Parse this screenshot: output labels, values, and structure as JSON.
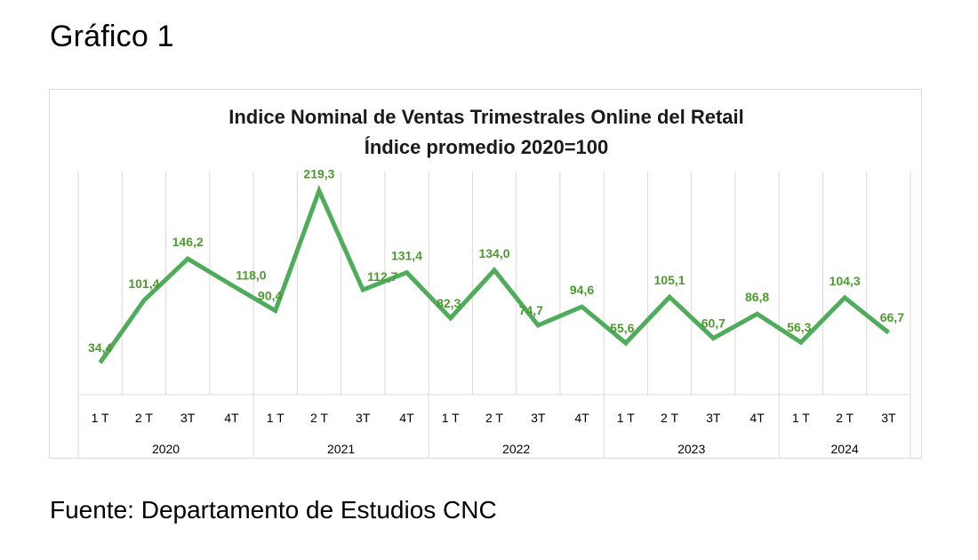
{
  "header": {
    "title": "Gráfico 1"
  },
  "footer": {
    "source": "Fuente: Departamento de Estudios CNC"
  },
  "chart_data": {
    "type": "line",
    "title": "Indice Nominal de Ventas Trimestrales Online del Retail",
    "subtitle": "Índice promedio 2020=100",
    "xlabel": "",
    "ylabel": "",
    "categories": [
      "1 T",
      "2 T",
      "3T",
      "4T",
      "1 T",
      "2 T",
      "3T",
      "4T",
      "1 T",
      "2 T",
      "3T",
      "4T",
      "1 T",
      "2 T",
      "3T",
      "4T",
      "1 T",
      "2 T",
      "3T"
    ],
    "years": [
      {
        "label": "2020",
        "count": 4
      },
      {
        "label": "2021",
        "count": 4
      },
      {
        "label": "2022",
        "count": 4
      },
      {
        "label": "2023",
        "count": 4
      },
      {
        "label": "2024",
        "count": 3
      }
    ],
    "series": [
      {
        "values": [
          34.4,
          101.4,
          146.2,
          118.0,
          90.4,
          219.3,
          112.7,
          131.4,
          82.3,
          134.0,
          74.7,
          94.6,
          55.6,
          105.1,
          60.7,
          86.8,
          56.3,
          104.3,
          66.7
        ],
        "labels": [
          "34,4",
          "101,4",
          "146,2",
          "118,0",
          "90,4",
          "219,3",
          "112,7",
          "131,4",
          "82,3",
          "134,0",
          "74,7",
          "94,6",
          "55,6",
          "105,1",
          "60,7",
          "86,8",
          "56,3",
          "104,3",
          "66,7"
        ],
        "color": "#4eac5b"
      }
    ],
    "ylim": [
      0,
      240
    ],
    "grid": "vertical",
    "legend": "none"
  }
}
